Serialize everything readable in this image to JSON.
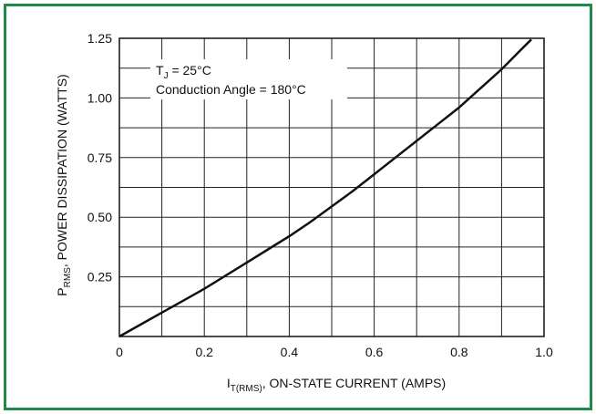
{
  "frame_color": "#1f8a4c",
  "chart_data": {
    "type": "line",
    "xlabel": {
      "main": "I",
      "sub": "T(RMS)",
      "rest": ", ON-STATE CURRENT (AMPS)"
    },
    "ylabel": {
      "main": "P",
      "sub": "RMS",
      "rest": ", POWER DISSIPATION (WATTS)"
    },
    "xlim": [
      0,
      1.0
    ],
    "ylim": [
      0,
      1.25
    ],
    "x_ticks": [
      0,
      0.2,
      0.4,
      0.6,
      0.8,
      1.0
    ],
    "x_tick_labels": [
      "0",
      "0.2",
      "0.4",
      "0.6",
      "0.8",
      "1.0"
    ],
    "y_ticks": [
      0.25,
      0.5,
      0.75,
      1.0,
      1.25
    ],
    "y_tick_labels": [
      "0.25",
      "0.50",
      "0.75",
      "1.00",
      "1.25"
    ],
    "grid": true,
    "x_grid_step": 0.1,
    "y_grid_step": 0.125,
    "annotations": {
      "line1_main": "T",
      "line1_sub": "J",
      "line1_rest": " = 25°C",
      "line2": "Conduction Angle = 180°C"
    },
    "series": [
      {
        "x": [
          0,
          0.05,
          0.1,
          0.15,
          0.2,
          0.25,
          0.3,
          0.35,
          0.4,
          0.45,
          0.5,
          0.55,
          0.6,
          0.65,
          0.7,
          0.75,
          0.8,
          0.85,
          0.9,
          0.95,
          0.97
        ],
        "y": [
          0,
          0.05,
          0.1,
          0.15,
          0.2,
          0.255,
          0.31,
          0.365,
          0.42,
          0.48,
          0.545,
          0.61,
          0.68,
          0.75,
          0.82,
          0.89,
          0.96,
          1.04,
          1.12,
          1.21,
          1.245
        ]
      }
    ]
  }
}
